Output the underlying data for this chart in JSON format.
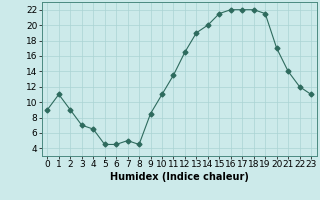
{
  "x": [
    0,
    1,
    2,
    3,
    4,
    5,
    6,
    7,
    8,
    9,
    10,
    11,
    12,
    13,
    14,
    15,
    16,
    17,
    18,
    19,
    20,
    21,
    22,
    23
  ],
  "y": [
    9,
    11,
    9,
    7,
    6.5,
    4.5,
    4.5,
    5,
    4.5,
    8.5,
    11,
    13.5,
    16.5,
    19,
    20,
    21.5,
    22,
    22,
    22,
    21.5,
    17,
    14,
    12,
    11
  ],
  "line_color": "#2e6b5e",
  "marker": "D",
  "marker_size": 2.5,
  "bg_color": "#cceaea",
  "grid_color": "#aad4d4",
  "xlabel": "Humidex (Indice chaleur)",
  "ylim": [
    3,
    23
  ],
  "xlim": [
    -0.5,
    23.5
  ],
  "yticks": [
    4,
    6,
    8,
    10,
    12,
    14,
    16,
    18,
    20,
    22
  ],
  "xticks": [
    0,
    1,
    2,
    3,
    4,
    5,
    6,
    7,
    8,
    9,
    10,
    11,
    12,
    13,
    14,
    15,
    16,
    17,
    18,
    19,
    20,
    21,
    22,
    23
  ],
  "label_fontsize": 7,
  "tick_fontsize": 6.5
}
